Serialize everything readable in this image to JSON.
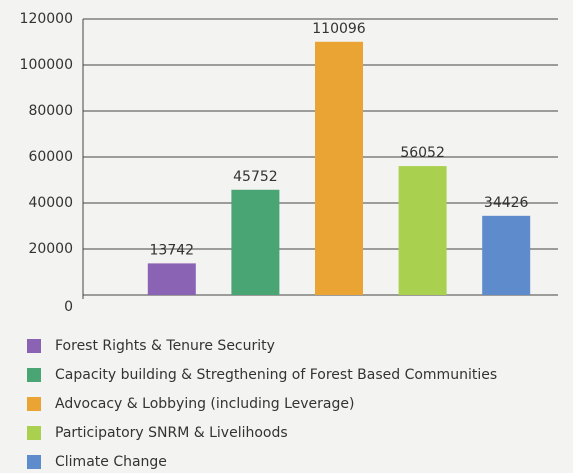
{
  "chart_data": {
    "type": "bar",
    "categories": [
      "Forest Rights & Tenure Security",
      "Capacity building & Stregthening of Forest Based Communities",
      "Advocacy & Lobbying (including Leverage)",
      "Participatory SNRM & Livelihoods",
      "Climate Change"
    ],
    "values": [
      13742,
      45752,
      110096,
      56052,
      34426
    ],
    "colors": [
      "#8b63b4",
      "#4aa574",
      "#e9a433",
      "#a9d14f",
      "#5d8bcb"
    ],
    "ylim": [
      0,
      120000
    ],
    "yticks": [
      0,
      20000,
      40000,
      60000,
      80000,
      100000,
      120000
    ],
    "grid": true,
    "legend": "bottom"
  }
}
